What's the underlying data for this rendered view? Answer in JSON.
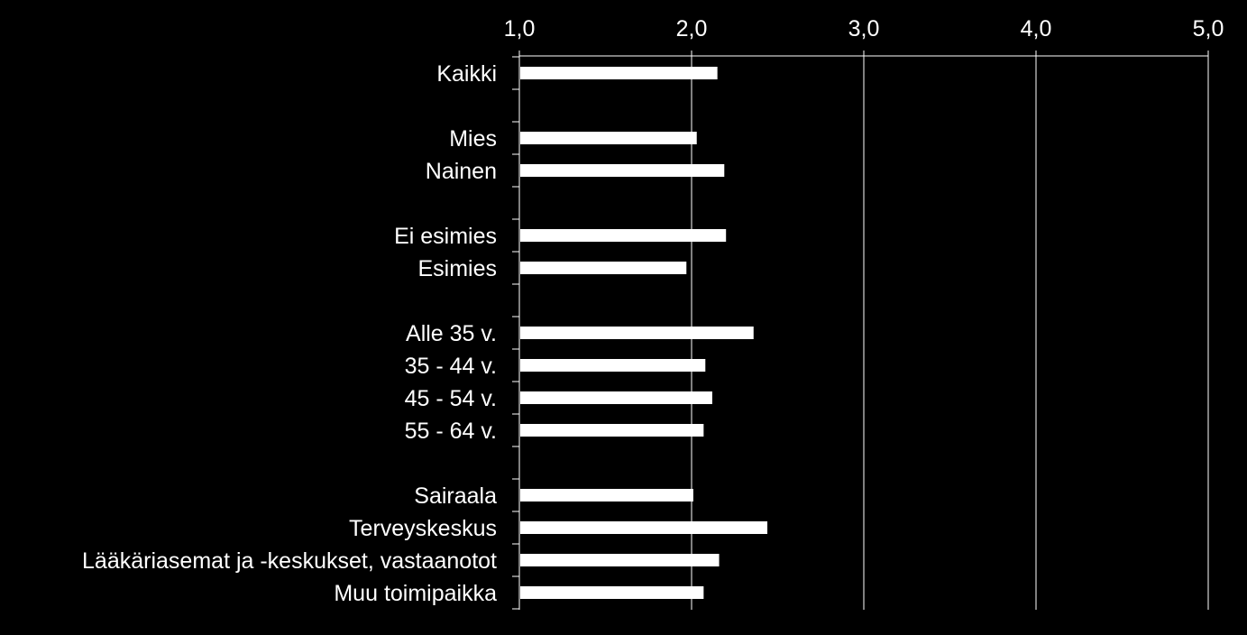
{
  "chart_data": {
    "type": "bar",
    "orientation": "horizontal",
    "title": "",
    "xlabel": "",
    "ylabel": "",
    "xlim": [
      1.0,
      5.0
    ],
    "ticks": [
      1.0,
      2.0,
      3.0,
      4.0,
      5.0
    ],
    "tick_labels": [
      "1,0",
      "2,0",
      "3,0",
      "4,0",
      "5,0"
    ],
    "x_axis_position": "top",
    "grid": "vertical",
    "legend": "none",
    "colors": {
      "background": "#000000",
      "bar": "#ffffff",
      "text": "#ffffff",
      "grid": "#ffffff"
    },
    "categories": [
      "Kaikki",
      "",
      "Mies",
      "Nainen",
      "",
      "Ei esimies",
      "Esimies",
      "",
      "Alle 35 v.",
      "35 - 44 v.",
      "45 - 54 v.",
      "55 - 64 v.",
      "",
      "Sairaala",
      "Terveyskeskus",
      "Lääkäriasemat ja -keskukset, vastaanotot",
      "Muu toimipaikka"
    ],
    "values": [
      2.15,
      null,
      2.03,
      2.19,
      null,
      2.2,
      1.97,
      null,
      2.36,
      2.08,
      2.12,
      2.07,
      null,
      2.01,
      2.44,
      2.16,
      2.07
    ]
  }
}
